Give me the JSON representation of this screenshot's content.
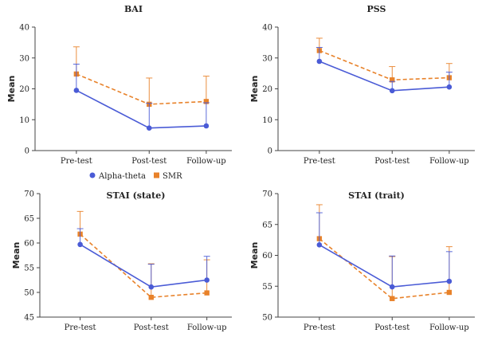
{
  "legend": {
    "alpha_label": "Alpha-theta",
    "smr_label": "SMR",
    "alpha_color": "#4a5bd6",
    "smr_color": "#e8822a"
  },
  "chart_data": [
    {
      "type": "line",
      "title": "BAI",
      "ylabel": "Mean",
      "xlabel": "",
      "categories": [
        "Pre-test",
        "Post-test",
        "Follow-up"
      ],
      "ylim": [
        0,
        40
      ],
      "yticks": [
        0,
        10,
        20,
        30,
        40
      ],
      "series": [
        {
          "name": "Alpha-theta",
          "values": [
            19.5,
            7.3,
            8.0
          ],
          "error": [
            8.5,
            8.0,
            7.5
          ]
        },
        {
          "name": "SMR",
          "values": [
            24.8,
            15.0,
            15.9
          ],
          "error": [
            8.8,
            8.5,
            8.2
          ]
        }
      ]
    },
    {
      "type": "line",
      "title": "PSS",
      "ylabel": "Mean",
      "xlabel": "",
      "categories": [
        "Pre-test",
        "Post-test",
        "Follow-up"
      ],
      "ylim": [
        0,
        40
      ],
      "yticks": [
        0,
        10,
        20,
        30,
        40
      ],
      "series": [
        {
          "name": "Alpha-theta",
          "values": [
            28.9,
            19.4,
            20.6
          ],
          "error": [
            4.5,
            3.0,
            4.8
          ]
        },
        {
          "name": "SMR",
          "values": [
            32.4,
            22.9,
            23.6
          ],
          "error": [
            4.0,
            4.3,
            4.6
          ]
        }
      ]
    },
    {
      "type": "line",
      "title": "STAI (state)",
      "ylabel": "Mean",
      "xlabel": "",
      "categories": [
        "Pre-test",
        "Post-test",
        "Follow-up"
      ],
      "ylim": [
        45,
        70
      ],
      "yticks": [
        45,
        50,
        55,
        60,
        65,
        70
      ],
      "series": [
        {
          "name": "Alpha-theta",
          "values": [
            59.7,
            51.1,
            52.5
          ],
          "error": [
            3.2,
            4.6,
            4.8
          ]
        },
        {
          "name": "SMR",
          "values": [
            61.8,
            49.0,
            49.9
          ],
          "error": [
            4.6,
            6.8,
            6.7
          ]
        }
      ]
    },
    {
      "type": "line",
      "title": "STAI (trait)",
      "ylabel": "Mean",
      "xlabel": "",
      "categories": [
        "Pre-test",
        "Post-test",
        "Follow-up"
      ],
      "ylim": [
        50,
        70
      ],
      "yticks": [
        50,
        55,
        60,
        65,
        70
      ],
      "series": [
        {
          "name": "Alpha-theta",
          "values": [
            61.7,
            54.9,
            55.8
          ],
          "error": [
            5.2,
            5.0,
            4.8
          ]
        },
        {
          "name": "SMR",
          "values": [
            62.7,
            53.0,
            54.0
          ],
          "error": [
            5.5,
            6.8,
            7.4
          ]
        }
      ]
    }
  ]
}
